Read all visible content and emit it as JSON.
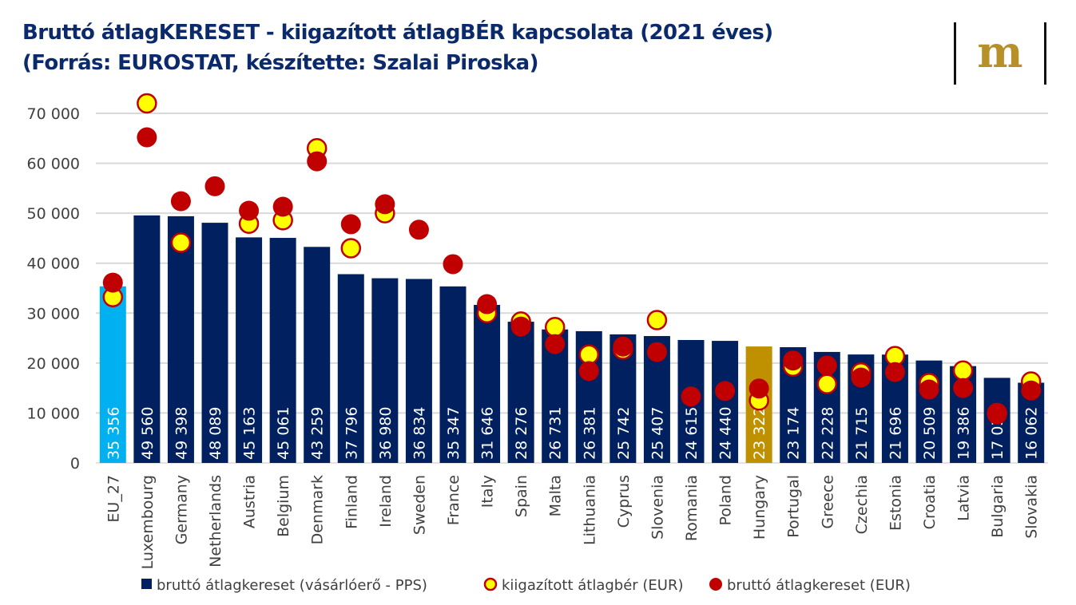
{
  "title_line1": "Bruttó átlagKERESET - kiigazított átlagBÉR kapcsolata (2021 éves)",
  "title_line2": "(Forrás: EUROSTAT, készítette: Szalai Piroska)",
  "logo_text": "m",
  "colors": {
    "bar": "#002060",
    "eu_bar": "#00b0f0",
    "hungary_bar": "#bf9000",
    "red_dot": "#c00000",
    "yellow_dot": "#ffff00",
    "title": "#0b2a6b"
  },
  "chart_data": {
    "type": "bar",
    "title": "Bruttó átlagKERESET - kiigazított átlagBÉR kapcsolata (2021 éves)",
    "ylim": [
      0,
      70000
    ],
    "yticks": [
      0,
      10000,
      20000,
      30000,
      40000,
      50000,
      60000,
      70000
    ],
    "ytick_labels": [
      "0",
      "10 000",
      "20 000",
      "30 000",
      "40 000",
      "50 000",
      "60 000",
      "70 000"
    ],
    "grid": true,
    "legend_placement": "bottom",
    "categories": [
      "EU_27",
      "Luxembourg",
      "Germany",
      "Netherlands",
      "Austria",
      "Belgium",
      "Denmark",
      "Finland",
      "Ireland",
      "Sweden",
      "France",
      "Italy",
      "Spain",
      "Malta",
      "Lithuania",
      "Cyprus",
      "Slovenia",
      "Romania",
      "Poland",
      "Hungary",
      "Portugal",
      "Greece",
      "Czechia",
      "Estonia",
      "Croatia",
      "Latvia",
      "Bulgaria",
      "Slovakia"
    ],
    "series": [
      {
        "name": "bruttó átlagkereset (vásárlóerő - PPS)",
        "kind": "bar",
        "values": [
          35356,
          49560,
          49398,
          48089,
          45163,
          45061,
          43259,
          37796,
          36980,
          36834,
          35347,
          31646,
          28276,
          26731,
          26381,
          25742,
          25407,
          24615,
          24440,
          23322,
          23174,
          22228,
          21715,
          21696,
          20509,
          19386,
          17038,
          16062
        ],
        "labels": [
          "35 356",
          "49 560",
          "49 398",
          "48 089",
          "45 163",
          "45 061",
          "43 259",
          "37 796",
          "36 980",
          "36 834",
          "35 347",
          "31 646",
          "28 276",
          "26 731",
          "26 381",
          "25 742",
          "25 407",
          "24 615",
          "24 440",
          "23 322",
          "23 174",
          "22 228",
          "21 715",
          "21 696",
          "20 509",
          "19 386",
          "17 038",
          "16 062"
        ]
      },
      {
        "name": "kiigazított átlagbér (EUR)",
        "kind": "marker",
        "values": [
          33200,
          72000,
          44100,
          null,
          47900,
          48600,
          63000,
          43000,
          50000,
          null,
          null,
          30000,
          28300,
          27200,
          21700,
          22700,
          28600,
          null,
          null,
          12500,
          19300,
          15800,
          18100,
          21400,
          16000,
          18500,
          10000,
          16300
        ]
      },
      {
        "name": "bruttó átlagkereset (EUR)",
        "kind": "marker",
        "values": [
          36100,
          65200,
          52400,
          55400,
          50500,
          51300,
          60400,
          47800,
          51800,
          46700,
          39800,
          31800,
          27300,
          23800,
          18400,
          23300,
          22200,
          13300,
          14400,
          14900,
          20500,
          19500,
          17100,
          18200,
          14700,
          15000,
          9700,
          14500
        ]
      }
    ]
  }
}
